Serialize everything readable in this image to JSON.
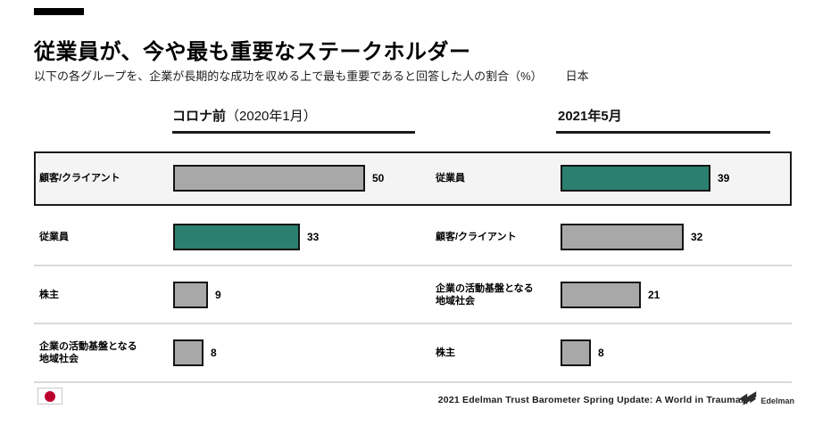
{
  "page": {
    "title": "従業員が、今や最も重要なステークホルダー",
    "subtitle": "以下の各グループを、企業が長期的な成功を収める上で最も重要であると回答した人の割合（%）",
    "region": "日本"
  },
  "headers": {
    "left_bold": "コロナ前",
    "left_rest": "（2020年1月）",
    "right": "2021年5月"
  },
  "chart_data": {
    "type": "bar",
    "orientation": "horizontal",
    "value_unit": "%",
    "xlim": [
      0,
      55
    ],
    "grid": false,
    "legend": "none",
    "series": [
      {
        "name": "コロナ前（2020年1月）",
        "points": [
          {
            "label": "顧客/クライアント",
            "value": 50
          },
          {
            "label": "従業員",
            "value": 33
          },
          {
            "label": "株主",
            "value": 9
          },
          {
            "label": "企業の活動基盤となる地域社会",
            "value": 8
          }
        ]
      },
      {
        "name": "2021年5月",
        "points": [
          {
            "label": "従業員",
            "value": 39
          },
          {
            "label": "顧客/クライアント",
            "value": 32
          },
          {
            "label": "企業の活動基盤となる地域社会",
            "value": 21
          },
          {
            "label": "株主",
            "value": 8
          }
        ]
      }
    ],
    "rows": [
      {
        "highlighted": true,
        "left": {
          "label": "顧客/クライアント",
          "value": 50,
          "color": "gray"
        },
        "right": {
          "label": "従業員",
          "value": 39,
          "color": "green"
        }
      },
      {
        "highlighted": false,
        "left": {
          "label": "従業員",
          "value": 33,
          "color": "green"
        },
        "right": {
          "label": "顧客/クライアント",
          "value": 32,
          "color": "gray"
        }
      },
      {
        "highlighted": false,
        "left": {
          "label": "株主",
          "value": 9,
          "color": "gray"
        },
        "right": {
          "label": "企業の活動基盤となる\n地域社会",
          "value": 21,
          "color": "gray"
        }
      },
      {
        "highlighted": false,
        "left": {
          "label": "企業の活動基盤となる\n地域社会",
          "value": 8,
          "color": "gray"
        },
        "right": {
          "label": "株主",
          "value": 8,
          "color": "gray"
        }
      }
    ]
  },
  "colors": {
    "green": "#2a7f6e",
    "gray": "#a8a8a8",
    "bar_border": "#141414",
    "highlight_bg": "#f4f4f4",
    "flag_red": "#bc002d"
  },
  "footer": {
    "source": "2021 Edelman Trust  Barometer Spring Update: A World in Trauma.",
    "brand": "Edelman"
  }
}
